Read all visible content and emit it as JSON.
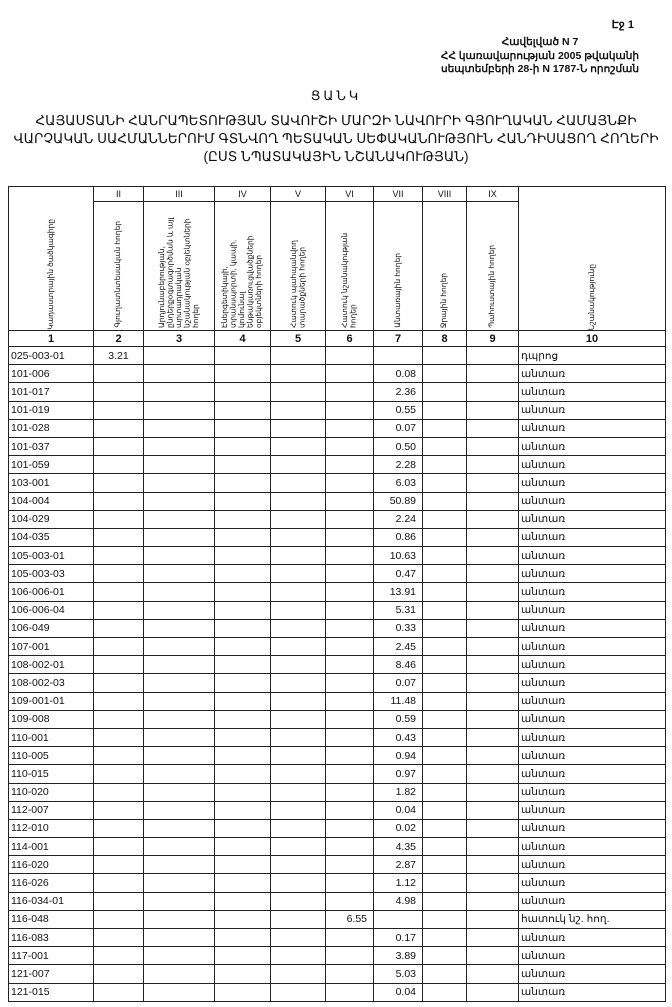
{
  "page_label": "Էջ 1",
  "annex": [
    "Հավելված N 7",
    "ՀՀ կառավարության 2005 թվականի",
    "սեպտեմբերի 28-ի  N 1787-Ն որոշման"
  ],
  "list_title": "ՑԱՆԿ",
  "main_title": [
    "ՀԱՅԱՍՏԱՆԻ ՀԱՆՐԱՊԵՏՈՒԹՅԱՆ ՏԱՎՈՒՇԻ ՄԱՐԶԻ ՆԱՎՈՒՐԻ ԳՅՈՒՂԱԿԱՆ ՀԱՄԱՅՆՔԻ",
    "ՎԱՐՉԱԿԱՆ ՍԱՀՄԱՆՆԵՐՈՒՄ ԳՏՆՎՈՂ ՊԵՏԱԿԱՆ ՍԵՓԱԿԱՆՈՒԹՅՈՒՆ ՀԱՆԴԻՍԱՑՈՂ ՀՈՂԵՐԻ",
    "(ԸՍՏ ՆՊԱՏԱԿԱՅԻՆ ՆՇԱՆԱԿՈՒԹՅԱՆ)"
  ],
  "table": {
    "roman": [
      "II",
      "III",
      "IV",
      "V",
      "VI",
      "VII",
      "VIII",
      "IX"
    ],
    "headers": [
      "Կադաստրային ծածկագիրը",
      "Գյուղատնտեսական հողեր",
      "Արդյունաբերության, ընդերքօգտագործման և այլ արտադրական նշանակության օբյեկտների հողեր",
      "Էներգետիկայի, տրանսպորտի, կապի, կոմունալ ենթակառուցվածքների օբյեկտների հողեր",
      "Հատուկ պահպանվող տարածքների հողեր",
      "Հատուկ նշանակության հողեր",
      "Անտառային հողեր",
      "Ջրային հողեր",
      "Պահուստային հողեր",
      "Նշանակությունը"
    ],
    "col_numbers": [
      "1",
      "2",
      "3",
      "4",
      "5",
      "6",
      "7",
      "8",
      "9",
      "10"
    ],
    "rows": [
      [
        "025-003-01",
        "3.21",
        "",
        "",
        "",
        "",
        "",
        "",
        "",
        "դպրոց"
      ],
      [
        "101-006",
        "",
        "",
        "",
        "",
        "",
        "0.08",
        "",
        "",
        "անտառ"
      ],
      [
        "101-017",
        "",
        "",
        "",
        "",
        "",
        "2.36",
        "",
        "",
        "անտառ"
      ],
      [
        "101-019",
        "",
        "",
        "",
        "",
        "",
        "0.55",
        "",
        "",
        "անտառ"
      ],
      [
        "101-028",
        "",
        "",
        "",
        "",
        "",
        "0.07",
        "",
        "",
        "անտառ"
      ],
      [
        "101-037",
        "",
        "",
        "",
        "",
        "",
        "0.50",
        "",
        "",
        "անտառ"
      ],
      [
        "101-059",
        "",
        "",
        "",
        "",
        "",
        "2.28",
        "",
        "",
        "անտառ"
      ],
      [
        "103-001",
        "",
        "",
        "",
        "",
        "",
        "6.03",
        "",
        "",
        "անտառ"
      ],
      [
        "104-004",
        "",
        "",
        "",
        "",
        "",
        "50.89",
        "",
        "",
        "անտառ"
      ],
      [
        "104-029",
        "",
        "",
        "",
        "",
        "",
        "2.24",
        "",
        "",
        "անտառ"
      ],
      [
        "104-035",
        "",
        "",
        "",
        "",
        "",
        "0.86",
        "",
        "",
        "անտառ"
      ],
      [
        "105-003-01",
        "",
        "",
        "",
        "",
        "",
        "10.63",
        "",
        "",
        "անտառ"
      ],
      [
        "105-003-03",
        "",
        "",
        "",
        "",
        "",
        "0.47",
        "",
        "",
        "անտառ"
      ],
      [
        "106-006-01",
        "",
        "",
        "",
        "",
        "",
        "13.91",
        "",
        "",
        "անտառ"
      ],
      [
        "106-006-04",
        "",
        "",
        "",
        "",
        "",
        "5.31",
        "",
        "",
        "անտառ"
      ],
      [
        "106-049",
        "",
        "",
        "",
        "",
        "",
        "0.33",
        "",
        "",
        "անտառ"
      ],
      [
        "107-001",
        "",
        "",
        "",
        "",
        "",
        "2.45",
        "",
        "",
        "անտառ"
      ],
      [
        "108-002-01",
        "",
        "",
        "",
        "",
        "",
        "8.46",
        "",
        "",
        "անտառ"
      ],
      [
        "108-002-03",
        "",
        "",
        "",
        "",
        "",
        "0.07",
        "",
        "",
        "անտառ"
      ],
      [
        "109-001-01",
        "",
        "",
        "",
        "",
        "",
        "11.48",
        "",
        "",
        "անտառ"
      ],
      [
        "109-008",
        "",
        "",
        "",
        "",
        "",
        "0.59",
        "",
        "",
        "անտառ"
      ],
      [
        "110-001",
        "",
        "",
        "",
        "",
        "",
        "0.43",
        "",
        "",
        "անտառ"
      ],
      [
        "110-005",
        "",
        "",
        "",
        "",
        "",
        "0.94",
        "",
        "",
        "անտառ"
      ],
      [
        "110-015",
        "",
        "",
        "",
        "",
        "",
        "0.97",
        "",
        "",
        "անտառ"
      ],
      [
        "110-020",
        "",
        "",
        "",
        "",
        "",
        "1.82",
        "",
        "",
        "անտառ"
      ],
      [
        "112-007",
        "",
        "",
        "",
        "",
        "",
        "0.04",
        "",
        "",
        "անտառ"
      ],
      [
        "112-010",
        "",
        "",
        "",
        "",
        "",
        "0.02",
        "",
        "",
        "անտառ"
      ],
      [
        "114-001",
        "",
        "",
        "",
        "",
        "",
        "4.35",
        "",
        "",
        "անտառ"
      ],
      [
        "116-020",
        "",
        "",
        "",
        "",
        "",
        "2.87",
        "",
        "",
        "անտառ"
      ],
      [
        "116-026",
        "",
        "",
        "",
        "",
        "",
        "1.12",
        "",
        "",
        "անտառ"
      ],
      [
        "116-034-01",
        "",
        "",
        "",
        "",
        "",
        "4.98",
        "",
        "",
        "անտառ"
      ],
      [
        "116-048",
        "",
        "",
        "",
        "",
        "6.55",
        "",
        "",
        "",
        "հատուկ նշ. հող."
      ],
      [
        "116-083",
        "",
        "",
        "",
        "",
        "",
        "0.17",
        "",
        "",
        "անտառ"
      ],
      [
        "117-001",
        "",
        "",
        "",
        "",
        "",
        "3.89",
        "",
        "",
        "անտառ"
      ],
      [
        "121-007",
        "",
        "",
        "",
        "",
        "",
        "5.03",
        "",
        "",
        "անտառ"
      ],
      [
        "121-015",
        "",
        "",
        "",
        "",
        "",
        "0.04",
        "",
        "",
        "անտառ"
      ]
    ]
  }
}
